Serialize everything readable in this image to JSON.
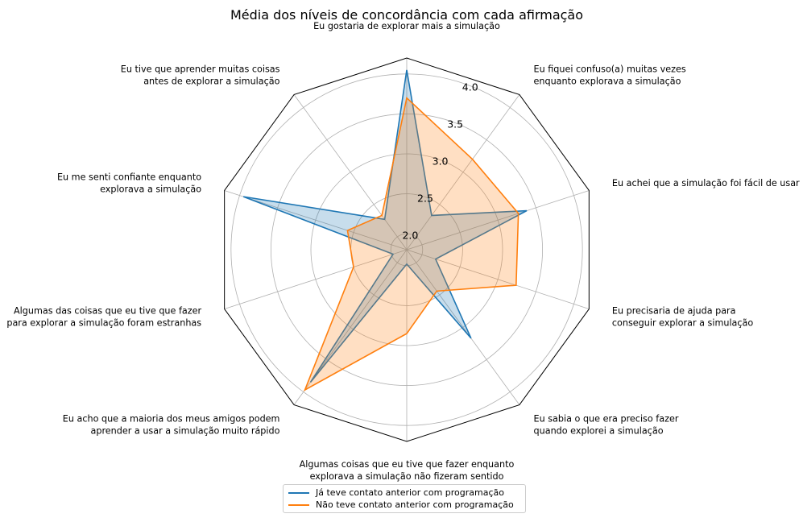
{
  "chart_data": {
    "type": "radar",
    "title": "Média dos níveis de concordância com cada afirmação",
    "categories": [
      "Eu gostaria de explorar mais a simulação",
      "Eu fiquei confuso(a) muitas vezes\nenquanto explorava a simulação",
      "Eu achei que a simulação foi fácil de usar",
      "Eu precisaria de ajuda para\nconseguir explorar a simulação",
      "Eu sabia o que era preciso fazer\nquando explorei a simulação",
      "Algumas coisas que eu tive que fazer enquanto\nexplorava a simulação não fizeram sentido",
      "Eu acho que a maioria dos meus amigos podem\naprender a usar a simulação muito rápido",
      "Algumas das coisas que eu tive que fazer\npara explorar a simulação foram estranhas",
      "Eu me senti confiante enquanto\nexplorava a simulação",
      "Eu tive que aprender muitas coisas\nantes de explorar a simulação"
    ],
    "rlim": [
      1.8,
      4.2
    ],
    "r_ticks": [
      "2.0",
      "2.5",
      "3.0",
      "3.5",
      "4.0"
    ],
    "r_tick_values": [
      2.0,
      2.5,
      3.0,
      3.5,
      4.0
    ],
    "grid": true,
    "legend_position": "bottom-center",
    "series": [
      {
        "name": "Já teve contato anterior com programação",
        "color": "#1f77b4",
        "values": [
          4.05,
          2.33,
          3.38,
          2.18,
          3.17,
          1.98,
          3.85,
          1.98,
          3.95,
          2.27
        ]
      },
      {
        "name": "Não teve contato anterior com programação",
        "color": "#ff7f0e",
        "values": [
          3.7,
          3.2,
          3.27,
          3.24,
          2.44,
          2.85,
          3.97,
          2.5,
          2.58,
          2.33
        ]
      }
    ]
  }
}
